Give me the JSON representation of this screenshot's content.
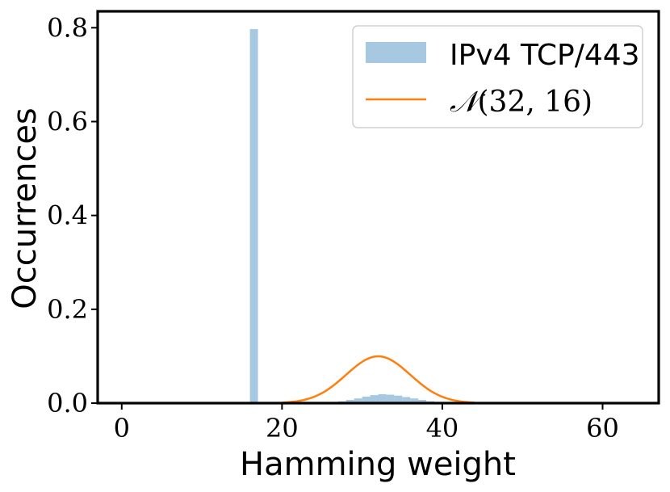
{
  "chart_data": {
    "type": "bar+line",
    "title": "",
    "xlabel": "Hamming weight",
    "ylabel": "Occurrences",
    "xlim": [
      -3,
      67
    ],
    "ylim": [
      0,
      0.835
    ],
    "xticks": [
      0,
      20,
      40,
      60
    ],
    "yticks": [
      0.0,
      0.2,
      0.4,
      0.6,
      0.8
    ],
    "xtick_labels": [
      "0",
      "20",
      "40",
      "60"
    ],
    "ytick_labels": [
      "0.0",
      "0.2",
      "0.4",
      "0.6",
      "0.8"
    ],
    "grid": false,
    "legend_position": "top-right",
    "series": [
      {
        "name": "IPv4 TCP/443",
        "kind": "histogram",
        "color": "#a6c8e0",
        "bin_width": 1,
        "bins": [
          {
            "x": 16,
            "y": 0.797
          },
          {
            "x": 25,
            "y": 0.001
          },
          {
            "x": 26,
            "y": 0.002
          },
          {
            "x": 27,
            "y": 0.004
          },
          {
            "x": 28,
            "y": 0.007
          },
          {
            "x": 29,
            "y": 0.01
          },
          {
            "x": 30,
            "y": 0.014
          },
          {
            "x": 31,
            "y": 0.017
          },
          {
            "x": 32,
            "y": 0.019
          },
          {
            "x": 33,
            "y": 0.018
          },
          {
            "x": 34,
            "y": 0.016
          },
          {
            "x": 35,
            "y": 0.013
          },
          {
            "x": 36,
            "y": 0.01
          },
          {
            "x": 37,
            "y": 0.007
          },
          {
            "x": 38,
            "y": 0.004
          },
          {
            "x": 39,
            "y": 0.002
          },
          {
            "x": 40,
            "y": 0.001
          }
        ]
      },
      {
        "name_prefix": "𝒩",
        "name_params": "(32, 16)",
        "kind": "line",
        "color": "#ff7f0e",
        "mean": 32,
        "variance": 16,
        "x_range": [
          20,
          44
        ]
      }
    ]
  }
}
